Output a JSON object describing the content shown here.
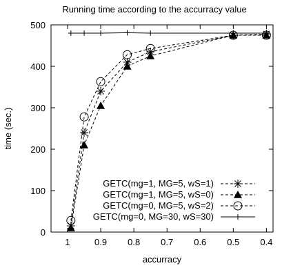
{
  "chart_data": {
    "type": "line",
    "title": "Running time according to the accurracy value",
    "xlabel": "accurracy",
    "ylabel": "time (sec.)",
    "x_ticks": [
      1,
      0.9,
      0.8,
      0.7,
      0.6,
      0.5,
      0.4
    ],
    "x_tick_labels": [
      "1",
      "0.9",
      "0.8",
      "0.7",
      "0.6",
      "0.5",
      "0.4"
    ],
    "y_ticks": [
      0,
      100,
      200,
      300,
      400,
      500
    ],
    "y_tick_labels": [
      "0",
      "100",
      "200",
      "300",
      "400",
      "500"
    ],
    "xlim": [
      1.05,
      0.38
    ],
    "ylim": [
      0,
      500
    ],
    "x_reversed": true,
    "grid": false,
    "legend_position": "bottom-right",
    "series": [
      {
        "name": "GETC(mg=1, MG=5, wS=1)",
        "marker": "star",
        "line": "dashed",
        "x": [
          0.99,
          0.95,
          0.9,
          0.82,
          0.75,
          0.5,
          0.4
        ],
        "y": [
          15,
          240,
          340,
          410,
          435,
          475,
          478
        ]
      },
      {
        "name": "GETC(mg=1, MG=5, wS=0)",
        "marker": "filled-triangle",
        "line": "dashed",
        "x": [
          0.99,
          0.95,
          0.9,
          0.82,
          0.75,
          0.5,
          0.4
        ],
        "y": [
          10,
          210,
          305,
          400,
          425,
          475,
          475
        ]
      },
      {
        "name": "GETC(mg=0, MG=5, wS=2)",
        "marker": "open-circle",
        "line": "dashed",
        "x": [
          0.99,
          0.95,
          0.9,
          0.82,
          0.75,
          0.5,
          0.4
        ],
        "y": [
          28,
          278,
          363,
          428,
          443,
          475,
          475
        ]
      },
      {
        "name": "GETC(mg=0, MG=30, wS=30)",
        "marker": "plus",
        "line": "solid",
        "x": [
          0.99,
          0.95,
          0.9,
          0.82,
          0.75,
          0.5,
          0.4
        ],
        "y": [
          480,
          480,
          480,
          481,
          480,
          480,
          480
        ]
      }
    ]
  }
}
